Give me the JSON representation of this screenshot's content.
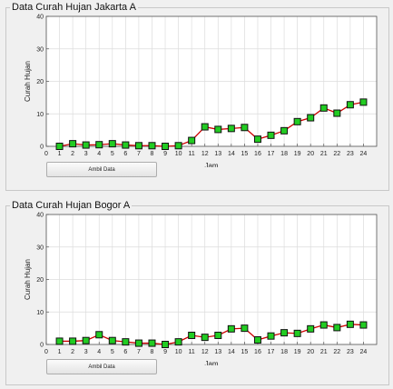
{
  "panels": [
    {
      "title": "Data Curah Hujan Jakarta A",
      "button_label": "Ambil Data",
      "chart": {
        "type": "line",
        "xlabel": "Jam",
        "ylabel": "Curah Hujan",
        "xlim": [
          0,
          25
        ],
        "ylim": [
          0,
          40
        ],
        "xticks": [
          0,
          1,
          2,
          3,
          4,
          5,
          6,
          7,
          8,
          9,
          10,
          11,
          12,
          13,
          14,
          15,
          16,
          17,
          18,
          19,
          20,
          21,
          22,
          23,
          24
        ],
        "yticks": [
          0,
          10,
          20,
          30,
          40
        ],
        "grid": true,
        "line_color": "#cc0000",
        "marker_color": "#22cc22",
        "x": [
          1,
          2,
          3,
          4,
          5,
          6,
          7,
          8,
          9,
          10,
          11,
          12,
          13,
          14,
          15,
          16,
          17,
          18,
          19,
          20,
          21,
          22,
          23,
          24
        ],
        "y": [
          0,
          0.8,
          0.4,
          0.5,
          0.8,
          0.4,
          0.2,
          0.2,
          0,
          0.2,
          1.8,
          6,
          5.2,
          5.5,
          5.8,
          2.2,
          3.4,
          4.8,
          7.6,
          8.8,
          11.8,
          10.2,
          12.8,
          13.6
        ]
      }
    },
    {
      "title": "Data Curah Hujan  Bogor A",
      "button_label": "Ambil Data",
      "chart": {
        "type": "line",
        "xlabel": "Jam",
        "ylabel": "Curah Hujan",
        "xlim": [
          0,
          25
        ],
        "ylim": [
          0,
          40
        ],
        "xticks": [
          0,
          1,
          2,
          3,
          4,
          5,
          6,
          7,
          8,
          9,
          10,
          11,
          12,
          13,
          14,
          15,
          16,
          17,
          18,
          19,
          20,
          21,
          22,
          23,
          24
        ],
        "yticks": [
          0,
          10,
          20,
          30,
          40
        ],
        "grid": true,
        "line_color": "#cc0000",
        "marker_color": "#22cc22",
        "x": [
          1,
          2,
          3,
          4,
          5,
          6,
          7,
          8,
          9,
          10,
          11,
          12,
          13,
          14,
          15,
          16,
          17,
          18,
          19,
          20,
          21,
          22,
          23,
          24
        ],
        "y": [
          1,
          1,
          1.2,
          3,
          1.2,
          0.8,
          0.4,
          0.4,
          0,
          0.8,
          2.8,
          2.2,
          2.8,
          4.8,
          5,
          1.4,
          2.6,
          3.6,
          3.4,
          4.8,
          6,
          5.2,
          6.2,
          6
        ]
      }
    }
  ],
  "chart_data": [
    {
      "type": "line",
      "title": "Data Curah Hujan Jakarta A",
      "xlabel": "Jam",
      "ylabel": "Curah Hujan",
      "xlim": [
        0,
        25
      ],
      "ylim": [
        0,
        40
      ],
      "grid": true,
      "x": [
        1,
        2,
        3,
        4,
        5,
        6,
        7,
        8,
        9,
        10,
        11,
        12,
        13,
        14,
        15,
        16,
        17,
        18,
        19,
        20,
        21,
        22,
        23,
        24
      ],
      "series": [
        {
          "y": [
            0,
            0.8,
            0.4,
            0.5,
            0.8,
            0.4,
            0.2,
            0.2,
            0,
            0.2,
            1.8,
            6,
            5.2,
            5.5,
            5.8,
            2.2,
            3.4,
            4.8,
            7.6,
            8.8,
            11.8,
            10.2,
            12.8,
            13.6
          ]
        }
      ]
    },
    {
      "type": "line",
      "title": "Data Curah Hujan  Bogor A",
      "xlabel": "Jam",
      "ylabel": "Curah Hujan",
      "xlim": [
        0,
        25
      ],
      "ylim": [
        0,
        40
      ],
      "grid": true,
      "x": [
        1,
        2,
        3,
        4,
        5,
        6,
        7,
        8,
        9,
        10,
        11,
        12,
        13,
        14,
        15,
        16,
        17,
        18,
        19,
        20,
        21,
        22,
        23,
        24
      ],
      "series": [
        {
          "y": [
            1,
            1,
            1.2,
            3,
            1.2,
            0.8,
            0.4,
            0.4,
            0,
            0.8,
            2.8,
            2.2,
            2.8,
            4.8,
            5,
            1.4,
            2.6,
            3.6,
            3.4,
            4.8,
            6,
            5.2,
            6.2,
            6
          ]
        }
      ]
    }
  ]
}
